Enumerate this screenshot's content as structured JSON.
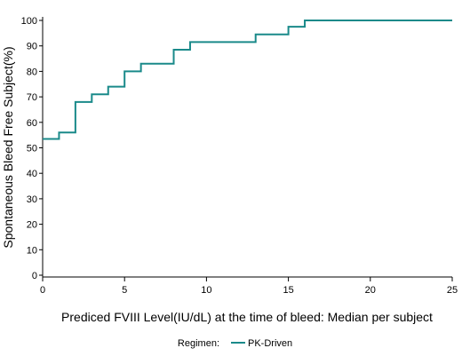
{
  "chart_data": {
    "type": "line",
    "step": true,
    "xlabel": "Prediced FVIII Level(IU/dL) at the time of bleed: Median per subject",
    "ylabel": "Spontaneous Bleed Free Subject(%)",
    "xlim": [
      0,
      25
    ],
    "ylim": [
      0,
      100
    ],
    "xticks": [
      0,
      5,
      10,
      15,
      20,
      25
    ],
    "yticks": [
      0,
      10,
      20,
      30,
      40,
      50,
      60,
      70,
      80,
      90,
      100
    ],
    "grid": false,
    "legend": {
      "title": "Regimen:",
      "placement": "bottom-center",
      "entries": [
        {
          "name": "PK-Driven",
          "color": "#1a8a8a"
        }
      ]
    },
    "series": [
      {
        "name": "PK-Driven",
        "color": "#1a8a8a",
        "x": [
          0,
          1,
          2,
          3,
          4,
          5,
          6,
          8,
          9,
          13,
          15,
          16,
          25
        ],
        "y": [
          53.5,
          56,
          68,
          71,
          74,
          80,
          83,
          88.5,
          91.5,
          94.5,
          97.5,
          100,
          100
        ]
      }
    ]
  }
}
